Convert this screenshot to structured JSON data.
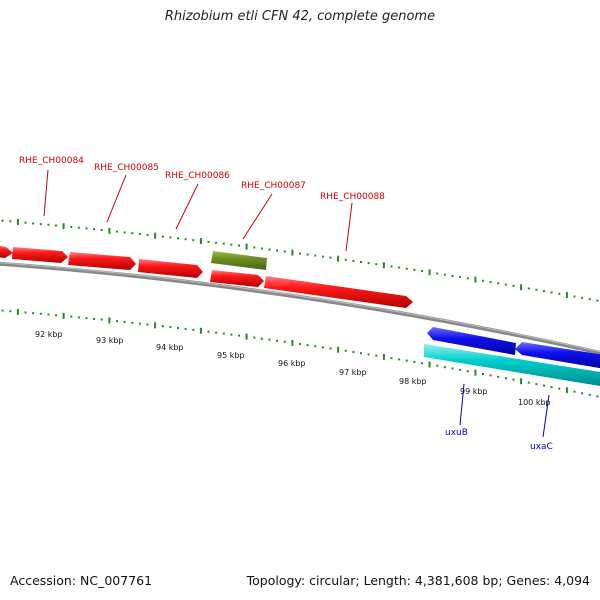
{
  "title": "Rhizobium etli CFN 42, complete genome",
  "accession": "Accession: NC_007761",
  "topology": "Topology: circular; Length: 4,381,608 bp; Genes: 4,094",
  "colors": {
    "forward_gene": "#ff1a1a",
    "other_feature": "#6b8e23",
    "reverse_gene_blue": "#1010ee",
    "reverse_gene_cyan": "#00cccc",
    "backbone": "#888888",
    "tick": "#228b22",
    "forward_label": "#cc0000",
    "reverse_label": "#0000cc"
  },
  "forward_gene_labels": [
    "RHE_CH00084",
    "RHE_CH00085",
    "RHE_CH00086",
    "RHE_CH00087",
    "RHE_CH00088"
  ],
  "reverse_gene_labels": [
    "uxuB",
    "uxaC"
  ],
  "scale_labels": [
    "92 kbp",
    "93 kbp",
    "94 kbp",
    "95 kbp",
    "96 kbp",
    "97 kbp",
    "98 kbp",
    "99 kbp",
    "100 kbp"
  ]
}
